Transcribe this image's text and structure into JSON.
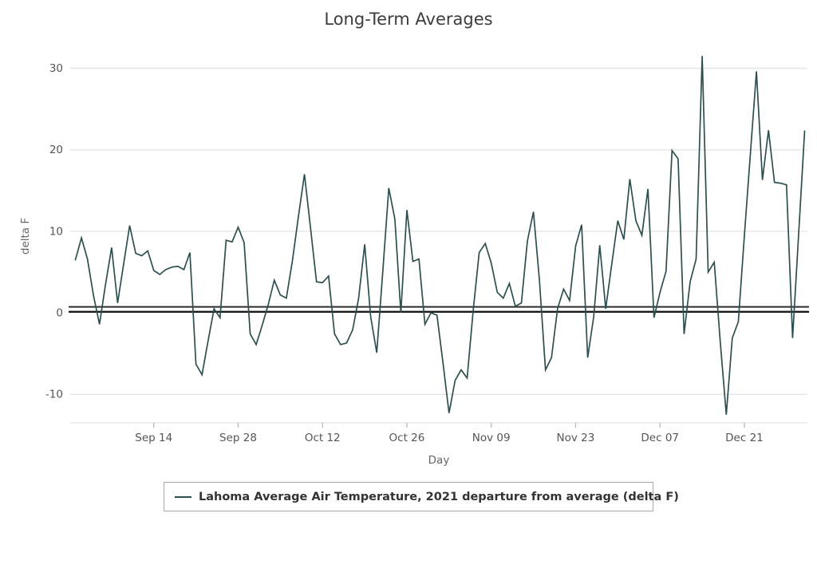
{
  "title": "Long-Term Averages",
  "y_axis": {
    "title": "delta F",
    "ticks": [
      30,
      20,
      10,
      0,
      -10
    ],
    "range": [
      -13.5,
      32.5
    ]
  },
  "x_axis": {
    "title": "Day",
    "tick_labels": [
      "Sep 14",
      "Sep 28",
      "Oct 12",
      "Oct 26",
      "Nov 09",
      "Nov 23",
      "Dec 07",
      "Dec 21"
    ],
    "tick_day_indices": [
      13,
      27,
      41,
      55,
      69,
      83,
      97,
      111
    ]
  },
  "legend": {
    "label": "Lahoma Average Air Temperature, 2021 departure from average (delta F)"
  },
  "colors": {
    "line": "#2d4f4f",
    "grid": "#e3e3e3",
    "zero_line": "#1a1a1a",
    "tick_text": "#555555",
    "axis_title_text": "#666666",
    "title_text": "#3d3d3d",
    "legend_border": "#a8a8a8",
    "tick_mark": "#bbbbbb"
  },
  "chart_data": {
    "type": "line",
    "title": "Long-Term Averages",
    "xlabel": "Day",
    "ylabel": "delta F",
    "ylim": [
      -13.5,
      32.5
    ],
    "x_domain_day_index": [
      -0.6,
      121.2
    ],
    "grid": "horizontal",
    "legend_position": "bottom-center",
    "zero_reference_line": true,
    "series": [
      {
        "name": "Lahoma Average Air Temperature, 2021 departure from average (delta F)",
        "date_start": "Sep 1",
        "date_end": "Dec 31",
        "cadence": "daily",
        "values": [
          6.5,
          9.2,
          6.6,
          2.1,
          -1.4,
          3.5,
          8.0,
          1.2,
          6.0,
          10.7,
          7.3,
          7.0,
          7.6,
          5.2,
          4.7,
          5.3,
          5.6,
          5.7,
          5.3,
          7.4,
          -6.3,
          -7.6,
          -3.5,
          0.5,
          -0.6,
          8.9,
          8.7,
          10.5,
          8.6,
          -2.6,
          -3.9,
          -1.5,
          1.0,
          4.0,
          2.2,
          1.8,
          6.4,
          11.8,
          17.0,
          10.5,
          3.8,
          3.7,
          4.5,
          -2.6,
          -3.9,
          -3.7,
          -2.1,
          1.8,
          8.4,
          -0.5,
          -4.9,
          5.1,
          15.3,
          11.5,
          0.0,
          12.6,
          6.3,
          6.6,
          -1.4,
          0.0,
          -0.3,
          -6.2,
          -12.3,
          -8.3,
          -7.0,
          -8.0,
          0.3,
          7.4,
          8.5,
          6.1,
          2.5,
          1.8,
          3.6,
          0.8,
          1.2,
          8.8,
          12.4,
          4.0,
          -7.0,
          -5.5,
          0.5,
          2.9,
          1.5,
          8.2,
          10.8,
          -5.5,
          -0.5,
          8.3,
          0.5,
          6.0,
          11.3,
          9.0,
          16.4,
          11.3,
          9.5,
          15.2,
          -0.6,
          2.5,
          5.1,
          19.9,
          18.9,
          -2.6,
          3.8,
          6.6,
          31.5,
          5.0,
          6.2,
          -3.5,
          -12.5,
          -3.1,
          -1.1,
          9.5,
          19.5,
          29.6,
          16.3,
          22.4,
          16.0,
          15.9,
          15.7,
          -3.1,
          9.5,
          22.3
        ]
      }
    ]
  }
}
